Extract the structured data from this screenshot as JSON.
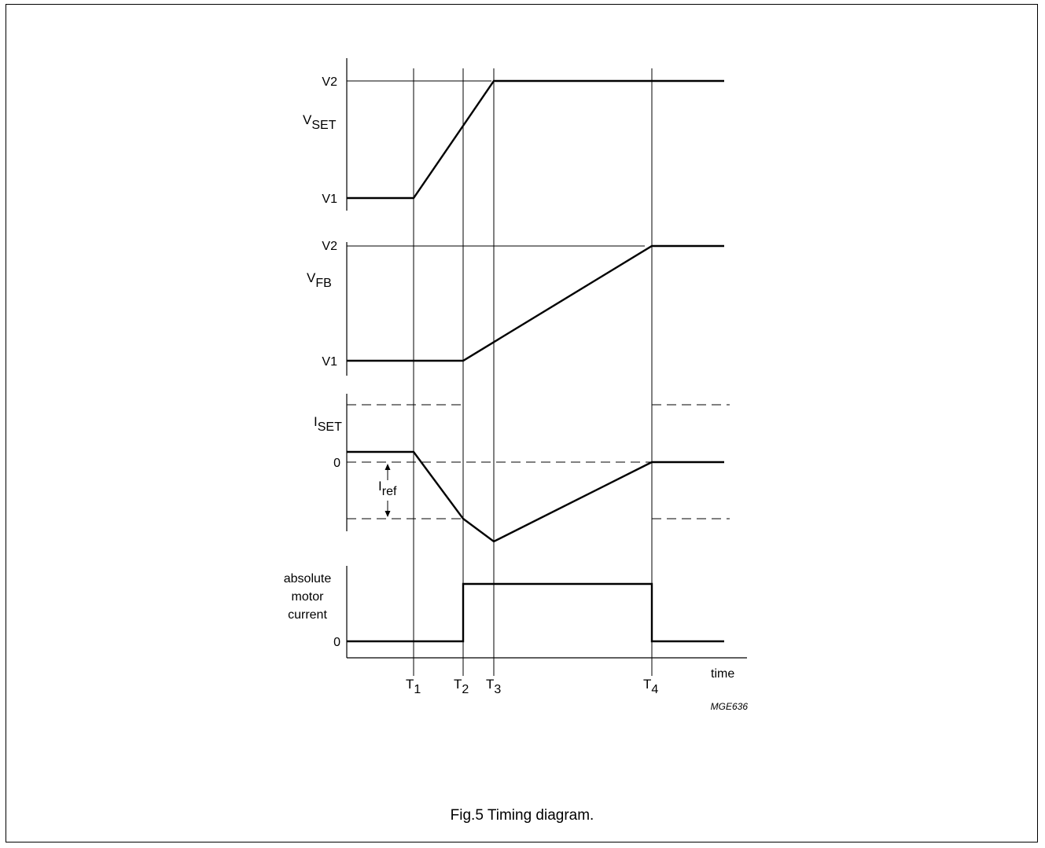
{
  "panels": {
    "vset": {
      "label": "V",
      "label_sub": "SET",
      "levels": {
        "top": "V2",
        "bottom": "V1"
      }
    },
    "vfb": {
      "label": "V",
      "label_sub": "FB",
      "levels": {
        "top": "V2",
        "bottom": "V1"
      }
    },
    "iset": {
      "label": "I",
      "label_sub": "SET",
      "zero": "0",
      "iref": "I",
      "iref_sub": "ref"
    },
    "motor": {
      "label_lines": [
        "absolute",
        "motor",
        "current"
      ],
      "zero": "0"
    }
  },
  "time_axis": {
    "label": "time",
    "markers": [
      {
        "name": "T",
        "sub": "1"
      },
      {
        "name": "T",
        "sub": "2"
      },
      {
        "name": "T",
        "sub": "3"
      },
      {
        "name": "T",
        "sub": "4"
      }
    ]
  },
  "figure_code": "MGE636",
  "caption": "Fig.5  Timing diagram."
}
